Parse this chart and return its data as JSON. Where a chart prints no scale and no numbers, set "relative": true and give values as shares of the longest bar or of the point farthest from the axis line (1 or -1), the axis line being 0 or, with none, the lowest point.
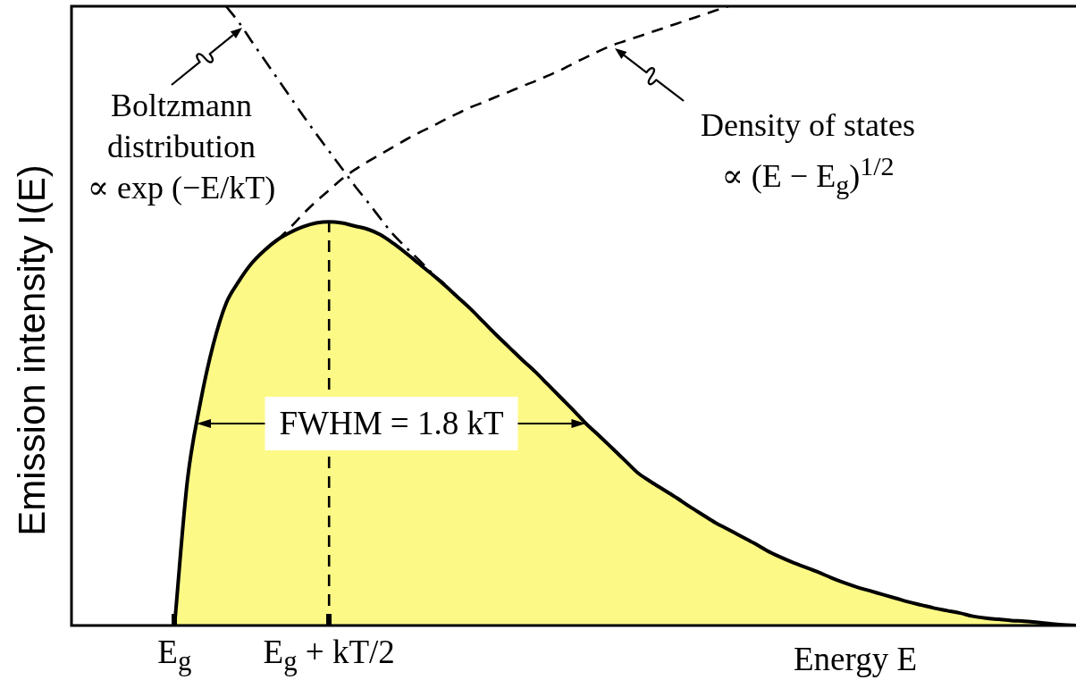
{
  "chart_data": {
    "type": "area",
    "xlabel": "Energy E",
    "ylabel": "Emission intensity I(E)",
    "relative": true,
    "categories": [
      null,
      null,
      null,
      null,
      null,
      null,
      null,
      null,
      "E$_{g}$",
      null,
      null,
      null,
      null,
      null,
      null,
      null,
      null,
      null,
      null,
      null,
      "E$_{g}$ + kT/2",
      null,
      null,
      null,
      null,
      null,
      null,
      null,
      null,
      null,
      null,
      null,
      null,
      null,
      null,
      null,
      null,
      null,
      null,
      null,
      null,
      null,
      null,
      null,
      null,
      null,
      null,
      null,
      null,
      null,
      null,
      null,
      null,
      null,
      null,
      null,
      null,
      null,
      null,
      null,
      null,
      null,
      null,
      null,
      null,
      null,
      null,
      null,
      null,
      null,
      null,
      null,
      null,
      null,
      null,
      null,
      null,
      null,
      null
    ],
    "series": [
      {
        "color": "#fdf986",
        "values": [
          null,
          null,
          null,
          null,
          null,
          null,
          null,
          null,
          0,
          0.234,
          0.359,
          0.453,
          0.52,
          0.556,
          0.585,
          0.606,
          0.623,
          0.635,
          0.644,
          0.65,
          0.652,
          0.65,
          0.645,
          0.64,
          0.631,
          0.617,
          0.601,
          0.584,
          0.567,
          0.549,
          0.53,
          0.511,
          0.49,
          0.469,
          0.449,
          0.429,
          0.41,
          0.389,
          0.368,
          0.347,
          0.325,
          0.306,
          0.286,
          0.266,
          0.246,
          0.232,
          0.219,
          0.206,
          0.192,
          0.179,
          0.166,
          0.155,
          0.144,
          0.133,
          0.121,
          0.111,
          0.102,
          0.094,
          0.086,
          0.077,
          0.069,
          0.062,
          0.056,
          0.05,
          0.044,
          0.038,
          0.033,
          0.028,
          0.024,
          0.02,
          0.015,
          0.012,
          0.01,
          0.008,
          0.007,
          0.005,
          0.003,
          0.001,
          0
        ]
      },
      {
        "type": "line",
        "color": "#000000",
        "line_style": "dashdot",
        "values": [
          null,
          null,
          null,
          null,
          null,
          null,
          null,
          null,
          null,
          null,
          null,
          null,
          1,
          0.974,
          0.943,
          0.913,
          0.883,
          0.853,
          0.823,
          0.794,
          0.766,
          0.738,
          0.71,
          0.684,
          0.657,
          0.631,
          0.61,
          0.59,
          0.569,
          0.551,
          null,
          null,
          null,
          null,
          null,
          null,
          null,
          null,
          null,
          null,
          null,
          null,
          null,
          null,
          null,
          null,
          null,
          null,
          null,
          null,
          null,
          null,
          null,
          null,
          null,
          null,
          null,
          null,
          null,
          null,
          null,
          null,
          null,
          null,
          null,
          null,
          null,
          null,
          null,
          null,
          null,
          null,
          null,
          null,
          null,
          null,
          null,
          null,
          null
        ]
      },
      {
        "type": "line",
        "color": "#000000",
        "line_style": "dashed",
        "values": [
          null,
          null,
          null,
          null,
          null,
          null,
          null,
          null,
          null,
          null,
          null,
          null,
          null,
          null,
          null,
          null,
          0.623,
          0.643,
          0.665,
          0.685,
          0.703,
          0.721,
          0.736,
          0.749,
          0.761,
          0.773,
          0.785,
          0.796,
          0.806,
          0.817,
          0.827,
          0.837,
          0.845,
          0.854,
          0.862,
          0.871,
          0.879,
          0.888,
          0.897,
          0.908,
          0.918,
          0.928,
          0.937,
          0.944,
          0.951,
          0.958,
          0.965,
          0.972,
          0.979,
          0.986,
          0.993,
          1,
          null,
          null,
          null,
          null,
          null,
          null,
          null,
          null,
          null,
          null,
          null,
          null,
          null,
          null,
          null,
          null,
          null,
          null,
          null,
          null,
          null,
          null,
          null,
          null,
          null,
          null,
          null
        ]
      }
    ],
    "ref_lines": [
      {
        "axis": "x",
        "value": "E$_{g}$ + kT/2",
        "color": "#000000",
        "line_style": "dashed"
      }
    ],
    "annotations": [
      "Boltzmann\ndistribution\n∝ exp (−E/kT)",
      "Density of states\n∝ (E − E$_{g}$)$^{1/2}$",
      "FWHM = 1.8 kT"
    ]
  }
}
